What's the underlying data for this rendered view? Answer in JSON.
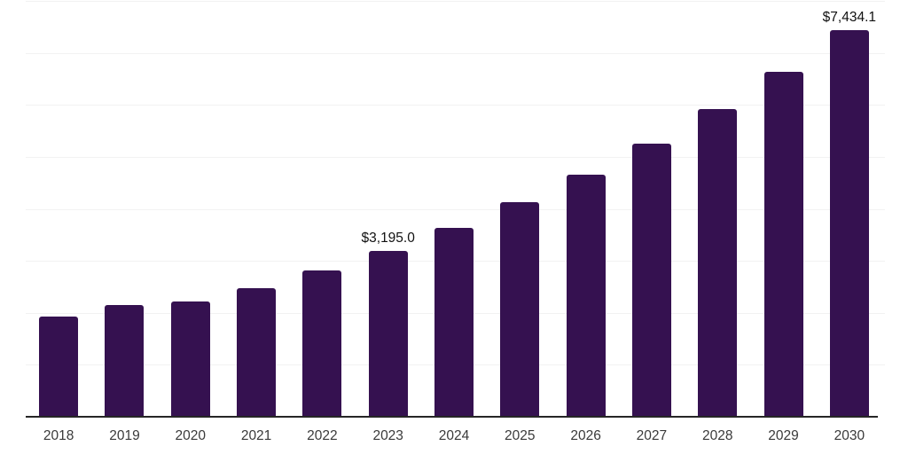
{
  "chart": {
    "background_color": "#ffffff",
    "bar_color": "#351150",
    "gridline_color": "#f2f2f2",
    "axis_line_color": "#262626",
    "tick_label_color": "#3a3a3a",
    "value_label_color": "#111111"
  },
  "chart_data": {
    "type": "bar",
    "title": "",
    "xlabel": "",
    "ylabel": "",
    "categories": [
      "2018",
      "2019",
      "2020",
      "2021",
      "2022",
      "2023",
      "2024",
      "2025",
      "2026",
      "2027",
      "2028",
      "2029",
      "2030"
    ],
    "values": [
      1930,
      2145,
      2210,
      2465,
      2820,
      3195.0,
      3630,
      4125,
      4650,
      5260,
      5920,
      6640,
      7434.1
    ],
    "point_labels": {
      "2023": "$3,195.0",
      "2030": "$7,434.1"
    },
    "ylim": [
      0,
      8000
    ],
    "grid_step": 1000,
    "grid": true,
    "legend": false,
    "y_axis_labels_visible": false
  }
}
